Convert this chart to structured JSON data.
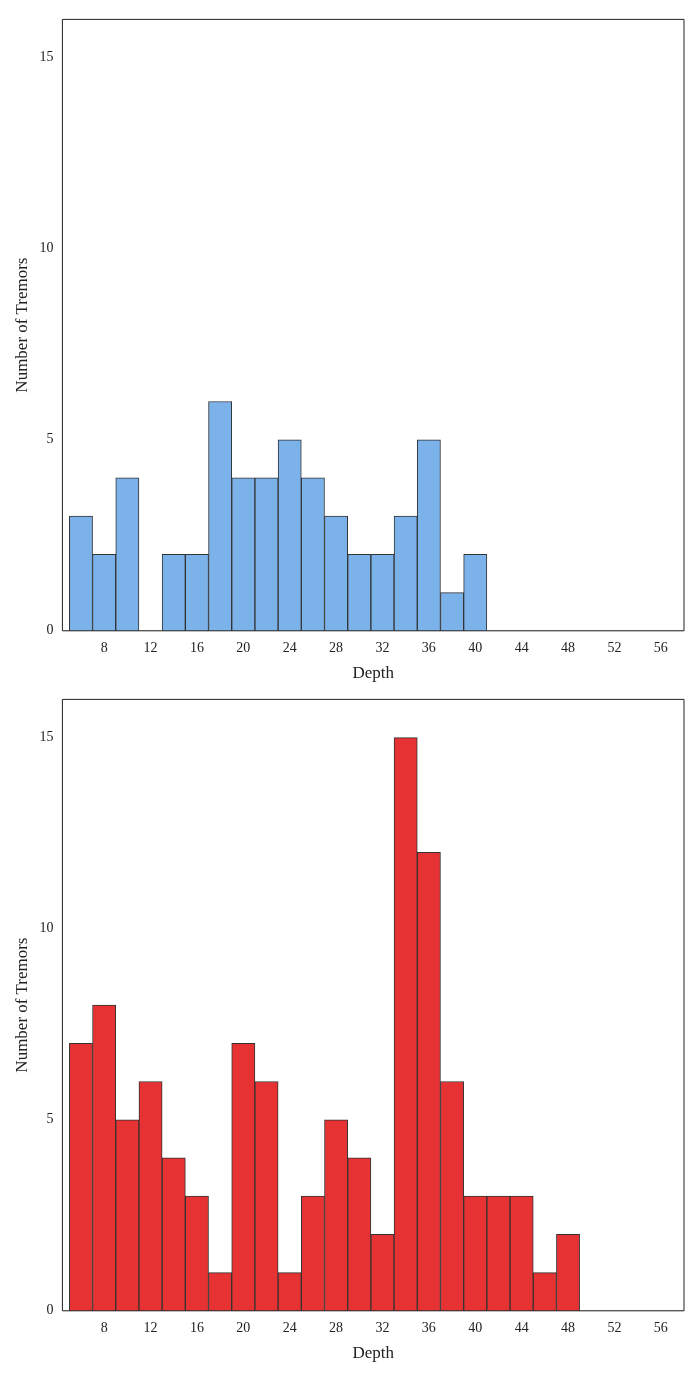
{
  "chart_data": [
    {
      "type": "histogram",
      "xlabel": "Depth",
      "ylabel": "Number of Tremors",
      "bins": [
        5,
        7,
        9,
        11,
        13,
        15,
        17,
        19,
        21,
        23,
        25,
        27,
        29,
        31,
        33,
        35,
        37,
        39,
        41
      ],
      "values": [
        3,
        2,
        4,
        0,
        2,
        2,
        6,
        4,
        4,
        5,
        4,
        3,
        2,
        2,
        3,
        5,
        1,
        2
      ],
      "color": "#7cb2ea",
      "xlim": [
        4.4,
        58
      ],
      "xticks": [
        8,
        12,
        16,
        20,
        24,
        28,
        32,
        36,
        40,
        44,
        48,
        52,
        56
      ],
      "ylim": [
        0,
        16
      ],
      "yticks": [
        0,
        5,
        10,
        15
      ]
    },
    {
      "type": "histogram",
      "xlabel": "Depth",
      "ylabel": "Number of Tremors",
      "bins": [
        5,
        7,
        9,
        11,
        13,
        15,
        17,
        19,
        21,
        23,
        25,
        27,
        29,
        31,
        33,
        35,
        37,
        39,
        41,
        43,
        45,
        47,
        49
      ],
      "values": [
        7,
        8,
        5,
        6,
        4,
        3,
        1,
        7,
        6,
        1,
        3,
        5,
        4,
        2,
        15,
        12,
        6,
        3,
        3,
        3,
        1,
        2
      ],
      "color": "#e63232",
      "xlim": [
        4.4,
        58
      ],
      "xticks": [
        8,
        12,
        16,
        20,
        24,
        28,
        32,
        36,
        40,
        44,
        48,
        52,
        56
      ],
      "ylim": [
        0,
        16
      ],
      "yticks": [
        0,
        5,
        10,
        15
      ]
    }
  ]
}
